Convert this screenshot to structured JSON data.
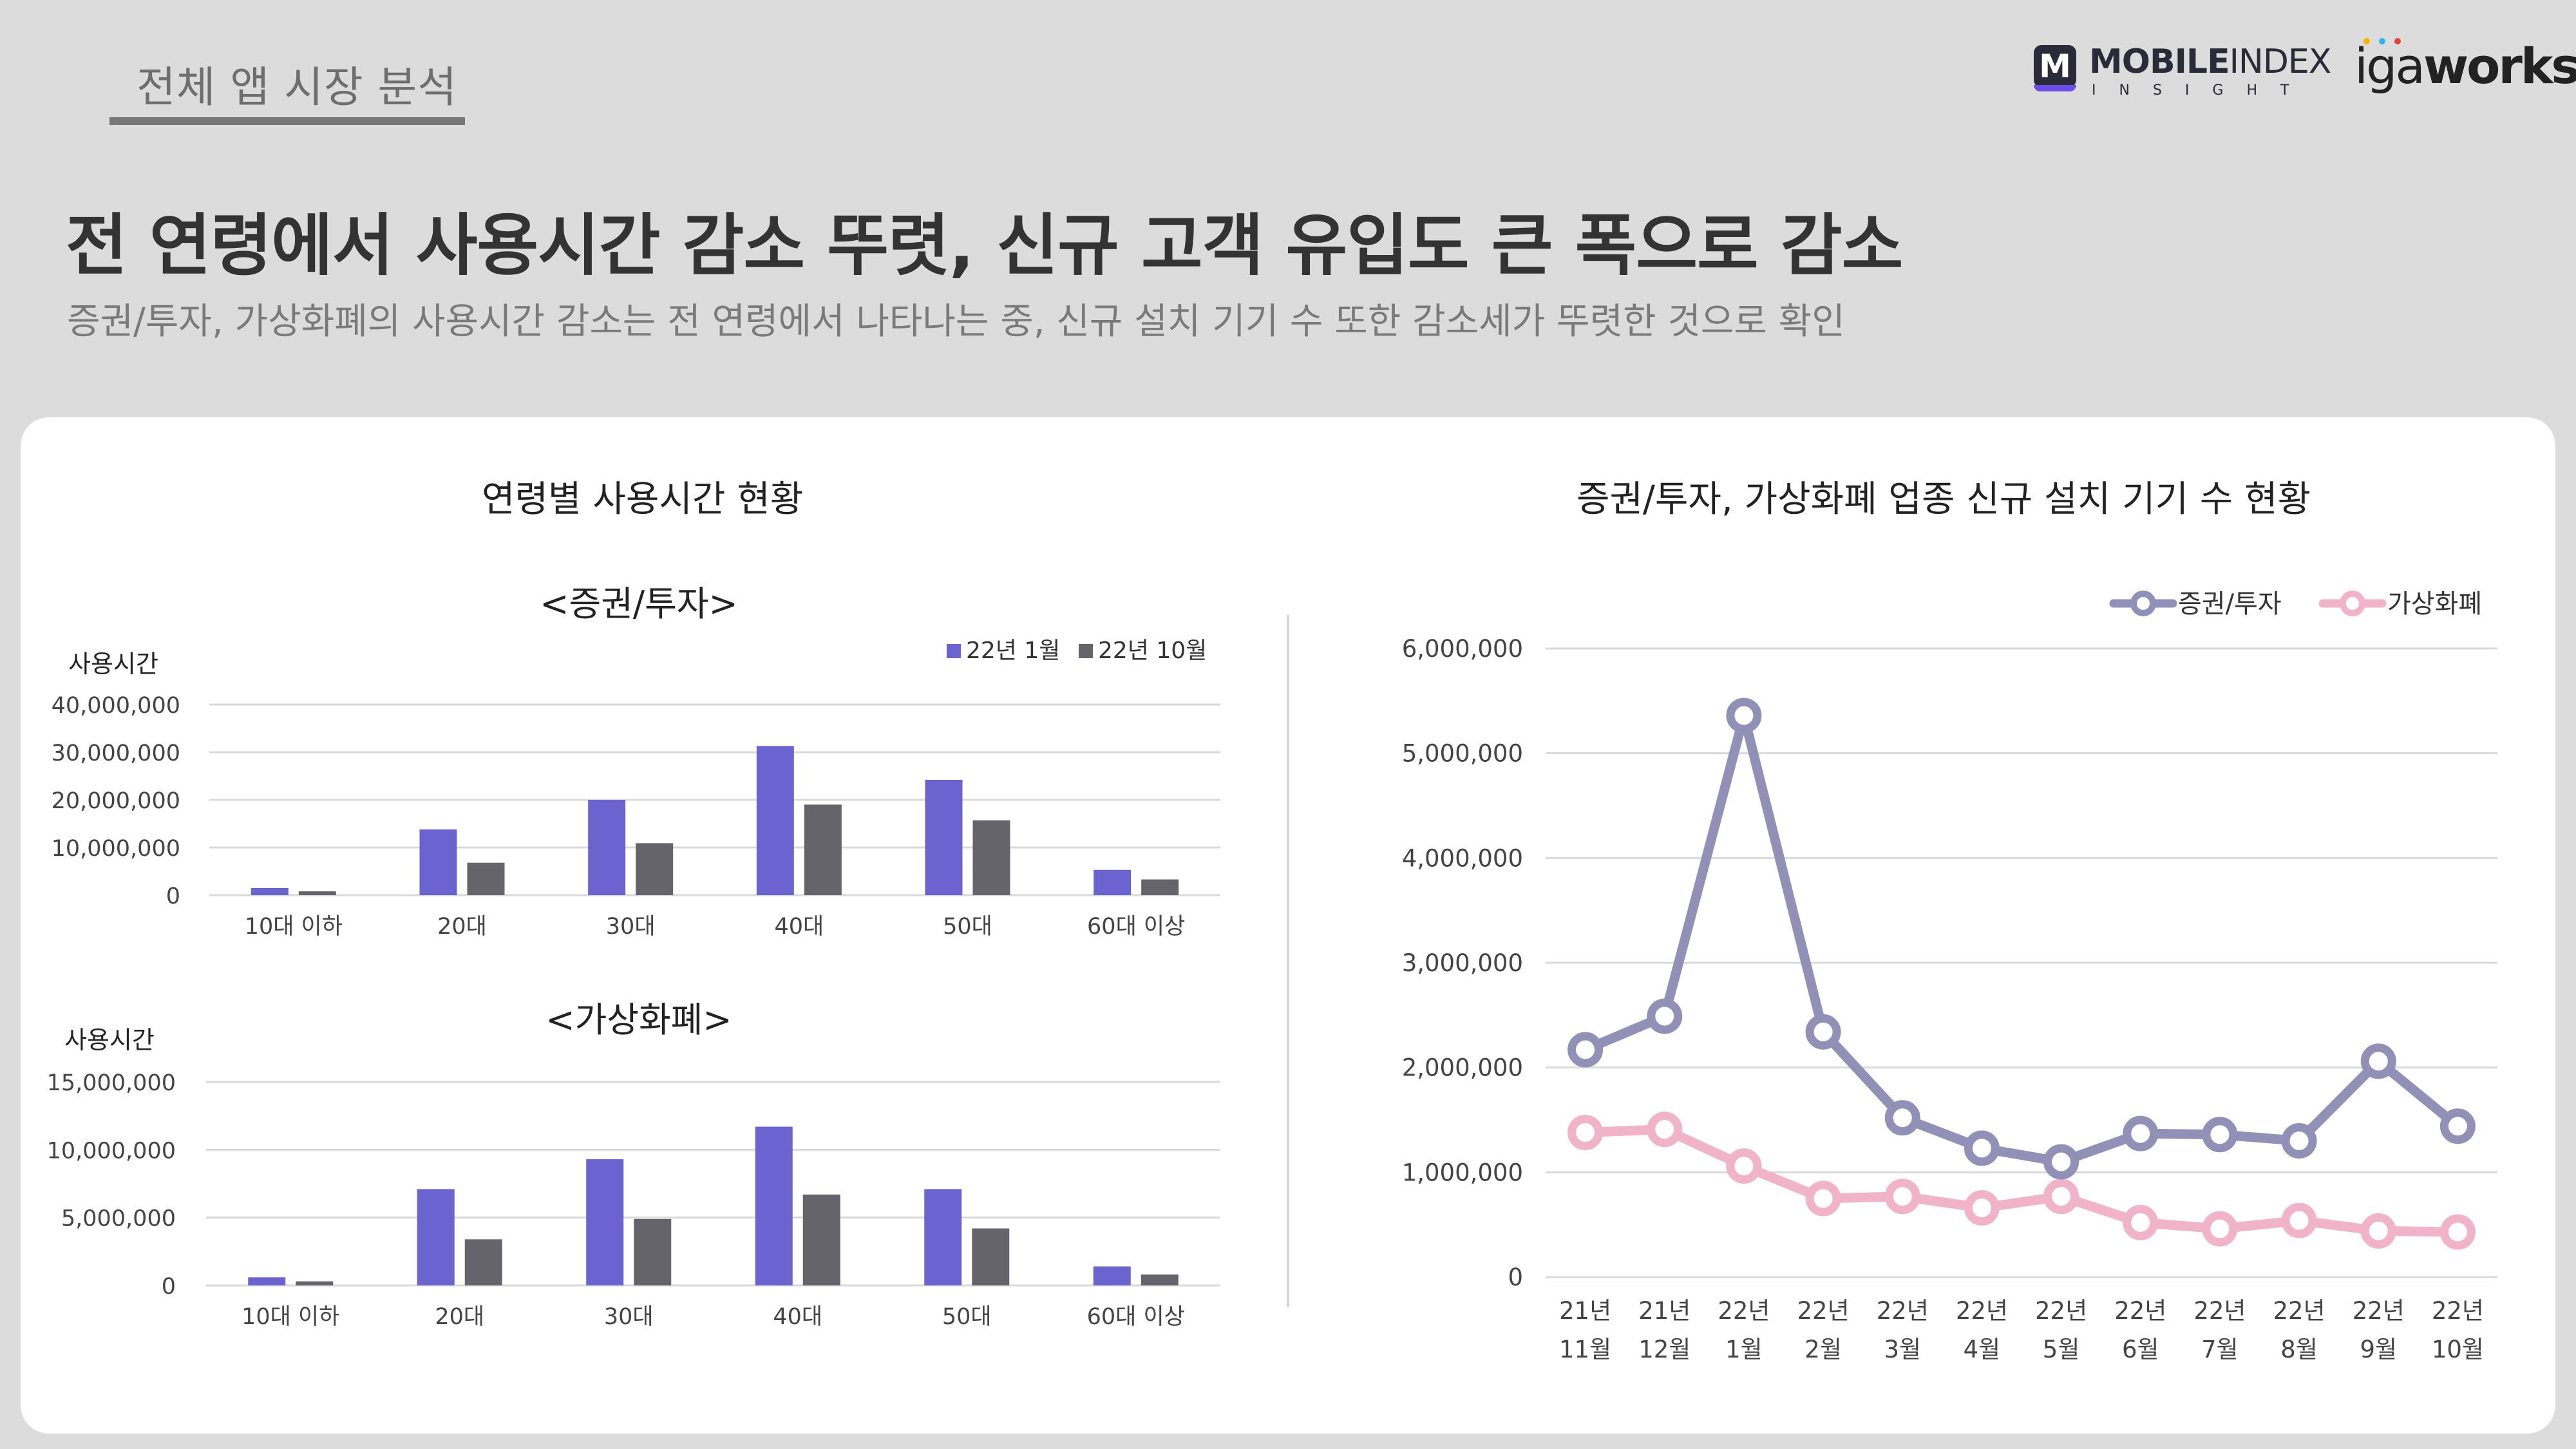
{
  "header": {
    "section_tag": "전체 앱 시장 분석",
    "headline": "전 연령에서 사용시간 감소 뚜렷, 신규 고객 유입도 큰 폭으로 감소",
    "subline": "증권/투자, 가상화폐의 사용시간 감소는 전 연령에서 나타나는 중, 신규 설치 기기 수 또한 감소세가 뚜렷한 것으로 확인"
  },
  "logos": {
    "mobileindex": {
      "mark": "M",
      "name_bold": "MOBILE",
      "name_light": "INDEX",
      "sub": "INSIGHT"
    },
    "igaworks": {
      "text_light": "iga",
      "text_bold": "works",
      "dot_colors": [
        "#f7b500",
        "#2fb7ec",
        "#e8423f"
      ]
    }
  },
  "left_panel": {
    "title": "연령별 사용시간 현황"
  },
  "right_panel": {
    "title": "증권/투자, 가상화폐 업종 신규 설치 기기 수 현황"
  },
  "colors": {
    "bar_jan": "#6b63cf",
    "bar_oct": "#64646a",
    "line_stock": "#9390b8",
    "line_crypto": "#f0b3c8",
    "grid": "#d9d9d9",
    "axis_text": "#444444"
  },
  "chart_data": [
    {
      "type": "bar",
      "title": "<증권/투자>",
      "ylabel": "사용시간",
      "categories": [
        "10대 이하",
        "20대",
        "30대",
        "40대",
        "50대",
        "60대 이상"
      ],
      "series": [
        {
          "name": "22년 1월",
          "values": [
            1500000,
            13800000,
            20000000,
            31300000,
            24200000,
            5300000
          ]
        },
        {
          "name": "22년 10월",
          "values": [
            800000,
            6800000,
            10900000,
            19000000,
            15700000,
            3300000
          ]
        }
      ],
      "ylim": [
        0,
        40000000
      ],
      "yticks": [
        0,
        10000000,
        20000000,
        30000000,
        40000000
      ],
      "ytick_labels": [
        "0",
        "10,000,000",
        "20,000,000",
        "30,000,000",
        "40,000,000"
      ],
      "legend": "top-right",
      "grid": true
    },
    {
      "type": "bar",
      "title": "<가상화폐>",
      "ylabel": "사용시간",
      "categories": [
        "10대 이하",
        "20대",
        "30대",
        "40대",
        "50대",
        "60대 이상"
      ],
      "series": [
        {
          "name": "22년 1월",
          "values": [
            600000,
            7100000,
            9300000,
            11700000,
            7100000,
            1400000
          ]
        },
        {
          "name": "22년 10월",
          "values": [
            300000,
            3400000,
            4900000,
            6700000,
            4200000,
            800000
          ]
        }
      ],
      "ylim": [
        0,
        15000000
      ],
      "yticks": [
        0,
        5000000,
        10000000,
        15000000
      ],
      "ytick_labels": [
        "0",
        "5,000,000",
        "10,000,000",
        "15,000,000"
      ],
      "legend": "none",
      "grid": true
    },
    {
      "type": "line",
      "title": "",
      "categories": [
        [
          "21년",
          "11월"
        ],
        [
          "21년",
          "12월"
        ],
        [
          "22년",
          "1월"
        ],
        [
          "22년",
          "2월"
        ],
        [
          "22년",
          "3월"
        ],
        [
          "22년",
          "4월"
        ],
        [
          "22년",
          "5월"
        ],
        [
          "22년",
          "6월"
        ],
        [
          "22년",
          "7월"
        ],
        [
          "22년",
          "8월"
        ],
        [
          "22년",
          "9월"
        ],
        [
          "22년",
          "10월"
        ]
      ],
      "series": [
        {
          "name": "증권/투자",
          "values": [
            2170000,
            2490000,
            5360000,
            2340000,
            1520000,
            1230000,
            1100000,
            1370000,
            1360000,
            1300000,
            2060000,
            1440000
          ]
        },
        {
          "name": "가상화폐",
          "values": [
            1380000,
            1410000,
            1060000,
            750000,
            770000,
            660000,
            770000,
            520000,
            460000,
            540000,
            440000,
            430000
          ]
        }
      ],
      "ylim": [
        0,
        6000000
      ],
      "yticks": [
        0,
        1000000,
        2000000,
        3000000,
        4000000,
        5000000,
        6000000
      ],
      "ytick_labels": [
        "0",
        "1,000,000",
        "2,000,000",
        "3,000,000",
        "4,000,000",
        "5,000,000",
        "6,000,000"
      ],
      "legend": "top-right",
      "grid": true
    }
  ]
}
